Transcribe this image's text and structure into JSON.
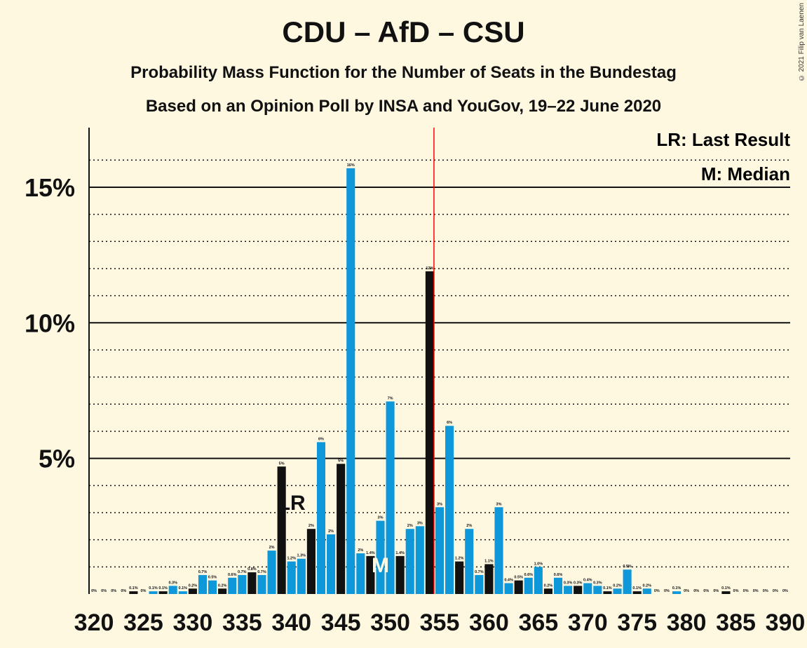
{
  "header": {
    "title": "CDU – AfD – CSU",
    "subtitle_1": "Probability Mass Function for the Number of Seats in the Bundestag",
    "subtitle_2": "Based on an Opinion Poll by INSA and YouGov, 19–22 June 2020",
    "copyright": "© 2021 Filip van Laenen"
  },
  "legend": {
    "last_result": "LR: Last Result",
    "median": "M: Median"
  },
  "chart_data": {
    "type": "bar",
    "title": "CDU – AfD – CSU",
    "xlabel": "",
    "ylabel": "",
    "x_ticks": [
      320,
      325,
      330,
      335,
      340,
      345,
      350,
      355,
      360,
      365,
      370,
      375,
      380,
      385,
      390
    ],
    "y_ticks": [
      "5%",
      "10%",
      "15%"
    ],
    "y_tick_values": [
      5,
      10,
      15
    ],
    "ylim": [
      0,
      17
    ],
    "grid": true,
    "majority_line": 355,
    "last_result": {
      "seat": 340,
      "label": "LR"
    },
    "median": {
      "seat": 349,
      "label": "M"
    },
    "colors": {
      "bar_blue": "#0e98da",
      "bar_black": "#111111",
      "majority": "#ff0000"
    },
    "bars": [
      {
        "x": 320,
        "value": 0.0,
        "label": "0%"
      },
      {
        "x": 321,
        "value": 0.0,
        "label": "0%"
      },
      {
        "x": 322,
        "value": 0.0,
        "label": "0%"
      },
      {
        "x": 323,
        "value": 0.0,
        "label": "0%"
      },
      {
        "x": 324,
        "value": 0.1,
        "label": "0.1%"
      },
      {
        "x": 325,
        "value": 0.0,
        "label": "0%"
      },
      {
        "x": 326,
        "value": 0.1,
        "label": "0.1%"
      },
      {
        "x": 327,
        "value": 0.1,
        "label": "0.1%"
      },
      {
        "x": 328,
        "value": 0.3,
        "label": "0.3%"
      },
      {
        "x": 329,
        "value": 0.1,
        "label": "0.1%"
      },
      {
        "x": 330,
        "value": 0.2,
        "label": "0.2%"
      },
      {
        "x": 331,
        "value": 0.7,
        "label": "0.7%"
      },
      {
        "x": 332,
        "value": 0.5,
        "label": "0.5%"
      },
      {
        "x": 333,
        "value": 0.2,
        "label": "0.2%"
      },
      {
        "x": 334,
        "value": 0.6,
        "label": "0.6%"
      },
      {
        "x": 335,
        "value": 0.7,
        "label": "0.7%"
      },
      {
        "x": 336,
        "value": 0.8,
        "label": "0.8%"
      },
      {
        "x": 337,
        "value": 0.7,
        "label": "0.7%"
      },
      {
        "x": 338,
        "value": 1.6,
        "label": "2%"
      },
      {
        "x": 339,
        "value": 4.7,
        "label": "5%"
      },
      {
        "x": 340,
        "value": 1.2,
        "label": "1.2%"
      },
      {
        "x": 341,
        "value": 1.3,
        "label": "1.3%"
      },
      {
        "x": 342,
        "value": 2.4,
        "label": "2%"
      },
      {
        "x": 343,
        "value": 5.6,
        "label": "6%"
      },
      {
        "x": 344,
        "value": 2.2,
        "label": "2%"
      },
      {
        "x": 345,
        "value": 4.8,
        "label": "5%"
      },
      {
        "x": 346,
        "value": 15.7,
        "label": "16%"
      },
      {
        "x": 347,
        "value": 1.5,
        "label": "2%"
      },
      {
        "x": 348,
        "value": 1.4,
        "label": "1.4%"
      },
      {
        "x": 349,
        "value": 2.7,
        "label": "3%"
      },
      {
        "x": 350,
        "value": 7.1,
        "label": "7%"
      },
      {
        "x": 351,
        "value": 1.4,
        "label": "1.4%"
      },
      {
        "x": 352,
        "value": 2.4,
        "label": "2%"
      },
      {
        "x": 353,
        "value": 2.5,
        "label": "3%"
      },
      {
        "x": 354,
        "value": 11.9,
        "label": "12%"
      },
      {
        "x": 355,
        "value": 3.2,
        "label": "3%"
      },
      {
        "x": 356,
        "value": 6.2,
        "label": "6%"
      },
      {
        "x": 357,
        "value": 1.2,
        "label": "1.2%"
      },
      {
        "x": 358,
        "value": 2.4,
        "label": "2%"
      },
      {
        "x": 359,
        "value": 0.7,
        "label": "0.7%"
      },
      {
        "x": 360,
        "value": 1.1,
        "label": "1.1%"
      },
      {
        "x": 361,
        "value": 3.2,
        "label": "3%"
      },
      {
        "x": 362,
        "value": 0.4,
        "label": "0.4%"
      },
      {
        "x": 363,
        "value": 0.5,
        "label": "0.5%"
      },
      {
        "x": 364,
        "value": 0.6,
        "label": "0.6%"
      },
      {
        "x": 365,
        "value": 1.0,
        "label": "1.0%"
      },
      {
        "x": 366,
        "value": 0.2,
        "label": "0.2%"
      },
      {
        "x": 367,
        "value": 0.6,
        "label": "0.6%"
      },
      {
        "x": 368,
        "value": 0.3,
        "label": "0.3%"
      },
      {
        "x": 369,
        "value": 0.3,
        "label": "0.3%"
      },
      {
        "x": 370,
        "value": 0.4,
        "label": "0.4%"
      },
      {
        "x": 371,
        "value": 0.3,
        "label": "0.3%"
      },
      {
        "x": 372,
        "value": 0.1,
        "label": "0.1%"
      },
      {
        "x": 373,
        "value": 0.2,
        "label": "0.2%"
      },
      {
        "x": 374,
        "value": 0.9,
        "label": "0.9%"
      },
      {
        "x": 375,
        "value": 0.1,
        "label": "0.1%"
      },
      {
        "x": 376,
        "value": 0.2,
        "label": "0.2%"
      },
      {
        "x": 377,
        "value": 0.0,
        "label": "0%"
      },
      {
        "x": 378,
        "value": 0.0,
        "label": "0%"
      },
      {
        "x": 379,
        "value": 0.1,
        "label": "0.1%"
      },
      {
        "x": 380,
        "value": 0.0,
        "label": "0%"
      },
      {
        "x": 381,
        "value": 0.0,
        "label": "0%"
      },
      {
        "x": 382,
        "value": 0.0,
        "label": "0%"
      },
      {
        "x": 383,
        "value": 0.0,
        "label": "0%"
      },
      {
        "x": 384,
        "value": 0.1,
        "label": "0.1%"
      },
      {
        "x": 385,
        "value": 0.0,
        "label": "0%"
      },
      {
        "x": 386,
        "value": 0.0,
        "label": "0%"
      },
      {
        "x": 387,
        "value": 0.0,
        "label": "0%"
      },
      {
        "x": 388,
        "value": 0.0,
        "label": "0%"
      },
      {
        "x": 389,
        "value": 0.0,
        "label": "0%"
      },
      {
        "x": 390,
        "value": 0.0,
        "label": "0%"
      }
    ]
  }
}
